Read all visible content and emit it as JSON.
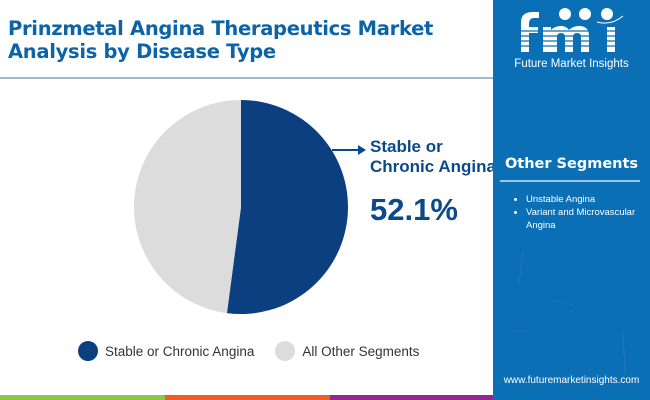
{
  "header": {
    "title_line1": "Prinzmetal Angina Therapeutics Market",
    "title_line2": "Analysis by Disease Type"
  },
  "callout": {
    "label_line1": "Stable or",
    "label_line2": "Chronic Angina",
    "value": "52.1%"
  },
  "legend": [
    {
      "label": "Stable or Chronic Angina",
      "color": "#0b3f80"
    },
    {
      "label": "All Other Segments",
      "color": "#dcdcdc"
    }
  ],
  "sidebar": {
    "logo_text": "Future Market Insights",
    "segments_title": "Other Segments",
    "segments": [
      {
        "label": "Unstable Angina"
      },
      {
        "label": "Variant and Microvascular Angina"
      }
    ],
    "website": "www.futuremarketinsights.com"
  },
  "colors": {
    "title": "#0b63a8",
    "primary_slice": "#0b3f80",
    "other_slice": "#dcdcdc",
    "sidebar_bg": "#0b6fb6",
    "footer_green": "#8dc63f",
    "footer_orange": "#f15a29",
    "footer_purple": "#92278f"
  },
  "chart_data": {
    "type": "pie",
    "title": "Prinzmetal Angina Therapeutics Market Analysis by Disease Type",
    "categories": [
      "Stable or Chronic Angina",
      "All Other Segments"
    ],
    "values": [
      52.1,
      47.9
    ],
    "colors": [
      "#0b3f80",
      "#dcdcdc"
    ],
    "annotations": [
      {
        "label": "Stable or Chronic Angina",
        "value": "52.1%"
      }
    ],
    "legend_position": "bottom"
  }
}
